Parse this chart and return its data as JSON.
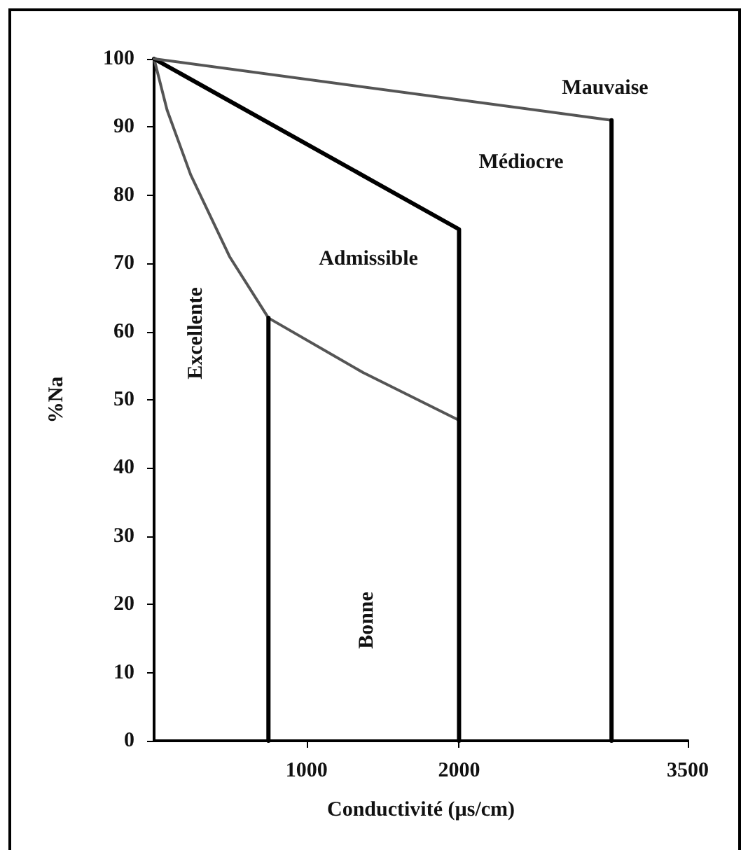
{
  "chart_data": {
    "type": "line",
    "xlabel": "Conductivité (µs/cm)",
    "ylabel": "%Na",
    "xlim": [
      0,
      3500
    ],
    "xticks": [
      1000,
      2000,
      3500
    ],
    "ylim": [
      0,
      100
    ],
    "yticks": [
      0,
      10,
      20,
      30,
      40,
      50,
      60,
      70,
      80,
      90,
      100
    ],
    "grid": false,
    "marker": "none",
    "line_style": "solid",
    "series": [
      {
        "color": "#555555",
        "x": [
          0,
          85,
          240,
          495,
          750,
          1370,
          2000
        ],
        "values": [
          100,
          92.5,
          83,
          71,
          62,
          54,
          47
        ]
      },
      {
        "color": "#000000",
        "x": [
          0,
          2000,
          2000
        ],
        "values": [
          100,
          75,
          0
        ]
      },
      {
        "color": "#555555",
        "x": [
          0,
          3000
        ],
        "values": [
          100,
          91
        ]
      },
      {
        "color": "#000000",
        "x": [
          750,
          750
        ],
        "values": [
          0,
          62
        ]
      },
      {
        "color": "#000000",
        "x": [
          3000,
          3000
        ],
        "values": [
          0,
          91
        ]
      }
    ],
    "annotations": [
      "Excellente",
      "Admissible",
      "Médiocre",
      "Mauvaise",
      "Bonne"
    ]
  }
}
